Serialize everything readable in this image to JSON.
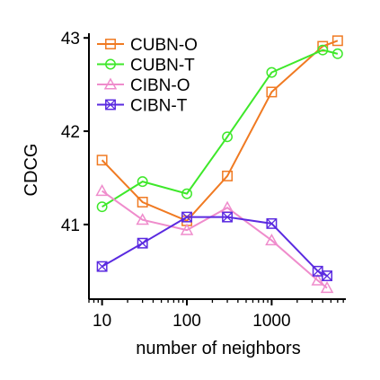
{
  "chart_data": {
    "type": "line",
    "xlabel": "number of neighbors",
    "ylabel": "CDCG",
    "xscale": "log",
    "xlim": [
      7,
      7500
    ],
    "ylim": [
      40.2,
      43.05
    ],
    "xticks": [
      10,
      100,
      1000
    ],
    "xtick_labels": [
      "10",
      "100",
      "1000"
    ],
    "yticks": [
      41,
      42,
      43
    ],
    "ytick_labels": [
      "41",
      "42",
      "43"
    ],
    "grid": false,
    "legend_position": "top-left",
    "series": [
      {
        "name": "CUBN-O",
        "color": "#f07a22",
        "marker": "square",
        "x": [
          10,
          30,
          100,
          300,
          1000,
          4000,
          6000
        ],
        "y": [
          41.69,
          41.24,
          41.04,
          41.52,
          42.42,
          42.91,
          42.97
        ]
      },
      {
        "name": "CUBN-T",
        "color": "#3ee82a",
        "marker": "circle",
        "x": [
          10,
          30,
          100,
          300,
          1000,
          4000,
          6000
        ],
        "y": [
          41.19,
          41.46,
          41.33,
          41.94,
          42.63,
          42.87,
          42.83
        ]
      },
      {
        "name": "CIBN-O",
        "color": "#ef8ccc",
        "marker": "triangle",
        "x": [
          10,
          30,
          100,
          300,
          1000,
          3500,
          4500
        ],
        "y": [
          41.36,
          41.05,
          40.94,
          41.18,
          40.83,
          40.4,
          40.32
        ]
      },
      {
        "name": "CIBN-T",
        "color": "#5a2ae0",
        "marker": "square-x",
        "x": [
          10,
          30,
          100,
          300,
          1000,
          3500,
          4500
        ],
        "y": [
          40.55,
          40.8,
          41.08,
          41.08,
          41.01,
          40.5,
          40.45
        ]
      }
    ]
  }
}
